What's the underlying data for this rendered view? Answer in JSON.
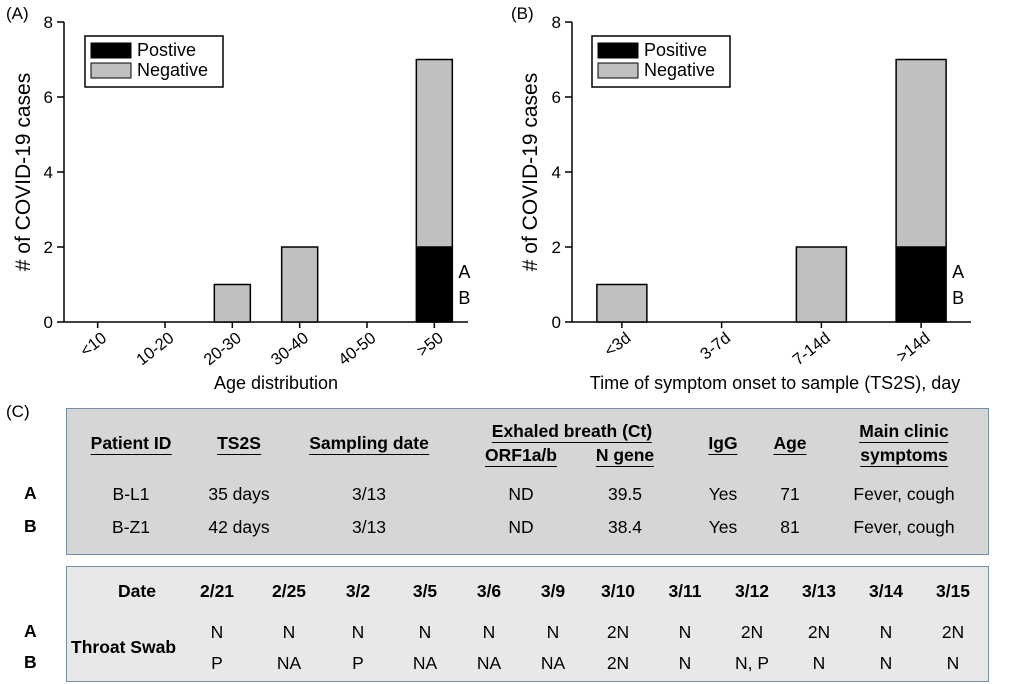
{
  "panels": {
    "a": "(A)",
    "b": "(B)",
    "c": "(C)"
  },
  "chart_data": [
    {
      "type": "bar",
      "stacked": true,
      "categories": [
        "<10",
        "10-20",
        "20-30",
        "30-40",
        "40-50",
        ">50"
      ],
      "series": [
        {
          "name": "Postive",
          "color": "#000000",
          "values": [
            0,
            0,
            0,
            0,
            0,
            2
          ]
        },
        {
          "name": "Negative",
          "color": "#c0c0c0",
          "values": [
            0,
            0,
            1,
            2,
            0,
            5
          ]
        }
      ],
      "xlabel": "Age distribution",
      "ylabel": "# of COVID-19 cases",
      "ylim": [
        0,
        8
      ],
      "yticks": [
        "0",
        "2",
        "4",
        "6",
        "8"
      ],
      "legend": "top-left",
      "annotations": [
        {
          "category": ">50",
          "lines": [
            "A",
            "B"
          ]
        }
      ]
    },
    {
      "type": "bar",
      "stacked": true,
      "categories": [
        "<3d",
        "3-7d",
        "7-14d",
        ">14d"
      ],
      "series": [
        {
          "name": "Positive",
          "color": "#000000",
          "values": [
            0,
            0,
            0,
            2
          ]
        },
        {
          "name": "Negative",
          "color": "#c0c0c0",
          "values": [
            1,
            0,
            2,
            5
          ]
        }
      ],
      "xlabel": "Time of symptom  onset to sample (TS2S), day",
      "ylabel": "# of COVID-19 cases",
      "ylim": [
        0,
        8
      ],
      "yticks": [
        "0",
        "2",
        "4",
        "6",
        "8"
      ],
      "legend": "top-left",
      "annotations": [
        {
          "category": ">14d",
          "lines": [
            "A",
            "B"
          ]
        }
      ]
    }
  ],
  "table1": {
    "headers": {
      "patient_id": "Patient ID",
      "ts2s": "TS2S",
      "sampling_date": "Sampling date",
      "exhaled": "Exhaled breath (Ct)",
      "orf": "ORF1a/b",
      "ngene": "N gene",
      "igg": "IgG",
      "age": "Age",
      "main1": "Main clinic",
      "main2": "symptoms"
    },
    "rows": [
      {
        "label": "A",
        "id": "B-L1",
        "ts2s": "35 days",
        "date": "3/13",
        "orf": "ND",
        "ngene": "39.5",
        "igg": "Yes",
        "age": "71",
        "symptoms": "Fever, cough"
      },
      {
        "label": "B",
        "id": "B-Z1",
        "ts2s": "42 days",
        "date": "3/13",
        "orf": "ND",
        "ngene": "38.4",
        "igg": "Yes",
        "age": "81",
        "symptoms": "Fever, cough"
      }
    ]
  },
  "table2": {
    "date_label": "Date",
    "row_label": "Throat Swab",
    "dates": [
      "2/21",
      "2/25",
      "3/2",
      "3/5",
      "3/6",
      "3/9",
      "3/10",
      "3/11",
      "3/12",
      "3/13",
      "3/14",
      "3/15"
    ],
    "rows": [
      {
        "label": "A",
        "values": [
          "N",
          "N",
          "N",
          "N",
          "N",
          "N",
          "2N",
          "N",
          "2N",
          "2N",
          "N",
          "2N"
        ]
      },
      {
        "label": "B",
        "values": [
          "P",
          "NA",
          "P",
          "NA",
          "NA",
          "NA",
          "2N",
          "N",
          "N, P",
          "N",
          "N",
          "N"
        ]
      }
    ]
  }
}
